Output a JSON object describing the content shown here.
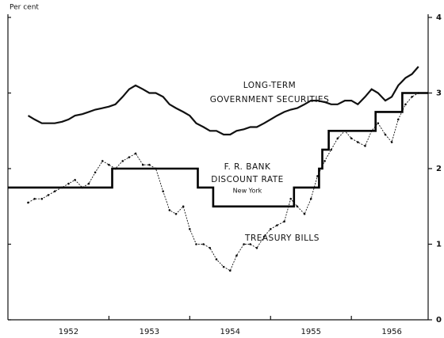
{
  "chart_data": {
    "type": "line",
    "y_label": "Per cent",
    "annotations": [
      "LONG-TERM",
      "GOVERNMENT SECURITIES",
      "F. R. BANK",
      "DISCOUNT RATE",
      "New York",
      "TREASURY BILLS"
    ],
    "xlim": [
      1951.75,
      1956.95
    ],
    "xticks": [
      {
        "value": 1952.5,
        "label": "1952"
      },
      {
        "value": 1953.5,
        "label": "1953"
      },
      {
        "value": 1954.5,
        "label": "1954"
      },
      {
        "value": 1955.5,
        "label": "1955"
      },
      {
        "value": 1956.5,
        "label": "1956"
      }
    ],
    "year_ticks": [
      1953,
      1954,
      1955,
      1956
    ],
    "ylim": [
      0,
      4
    ],
    "yticks": [
      0,
      1,
      2,
      3,
      4
    ],
    "x": [
      1952.0,
      1952.08,
      1952.17,
      1952.25,
      1952.33,
      1952.42,
      1952.5,
      1952.58,
      1952.67,
      1952.75,
      1952.83,
      1952.92,
      1953.0,
      1953.08,
      1953.17,
      1953.25,
      1953.33,
      1953.42,
      1953.5,
      1953.58,
      1953.67,
      1953.75,
      1953.83,
      1953.92,
      1954.0,
      1954.08,
      1954.17,
      1954.25,
      1954.33,
      1954.42,
      1954.5,
      1954.58,
      1954.67,
      1954.75,
      1954.83,
      1954.92,
      1955.0,
      1955.08,
      1955.17,
      1955.25,
      1955.33,
      1955.42,
      1955.5,
      1955.58,
      1955.67,
      1955.75,
      1955.83,
      1955.92,
      1956.0,
      1956.08,
      1956.17,
      1956.25,
      1956.33,
      1956.42,
      1956.5,
      1956.58,
      1956.67,
      1956.75,
      1956.83
    ],
    "series": [
      {
        "name": "Long-term government securities",
        "color": "#111111",
        "style": "solid",
        "values": [
          2.7,
          2.65,
          2.6,
          2.6,
          2.6,
          2.62,
          2.65,
          2.7,
          2.72,
          2.75,
          2.78,
          2.8,
          2.82,
          2.85,
          2.95,
          3.05,
          3.1,
          3.05,
          3.0,
          3.0,
          2.95,
          2.85,
          2.8,
          2.75,
          2.7,
          2.6,
          2.55,
          2.5,
          2.5,
          2.45,
          2.45,
          2.5,
          2.52,
          2.55,
          2.55,
          2.6,
          2.65,
          2.7,
          2.75,
          2.78,
          2.8,
          2.85,
          2.9,
          2.9,
          2.88,
          2.85,
          2.85,
          2.9,
          2.9,
          2.85,
          2.95,
          3.05,
          3.0,
          2.9,
          2.95,
          3.1,
          3.2,
          3.25,
          3.35
        ]
      },
      {
        "name": "Treasury bills",
        "color": "#111111",
        "style": "dotted",
        "values": [
          1.55,
          1.6,
          1.6,
          1.65,
          1.7,
          1.75,
          1.8,
          1.85,
          1.75,
          1.8,
          1.95,
          2.1,
          2.05,
          2.0,
          2.1,
          2.15,
          2.2,
          2.05,
          2.05,
          2.0,
          1.7,
          1.45,
          1.4,
          1.5,
          1.2,
          1.0,
          1.0,
          0.95,
          0.8,
          0.7,
          0.65,
          0.85,
          1.0,
          1.0,
          0.95,
          1.1,
          1.2,
          1.25,
          1.3,
          1.6,
          1.5,
          1.4,
          1.6,
          1.9,
          2.1,
          2.25,
          2.4,
          2.5,
          2.4,
          2.35,
          2.3,
          2.5,
          2.6,
          2.45,
          2.35,
          2.65,
          2.85,
          2.95,
          3.0
        ]
      }
    ],
    "discount_rate": {
      "name": "F. R. Bank discount rate",
      "color": "#000000",
      "style": "step",
      "x": [
        1951.75,
        1953.04,
        1954.1,
        1954.29,
        1955.29,
        1955.6,
        1955.64,
        1955.72,
        1956.3,
        1956.63
      ],
      "values": [
        1.75,
        2,
        1.75,
        1.5,
        1.75,
        2,
        2.25,
        2.5,
        2.75,
        3
      ]
    }
  }
}
